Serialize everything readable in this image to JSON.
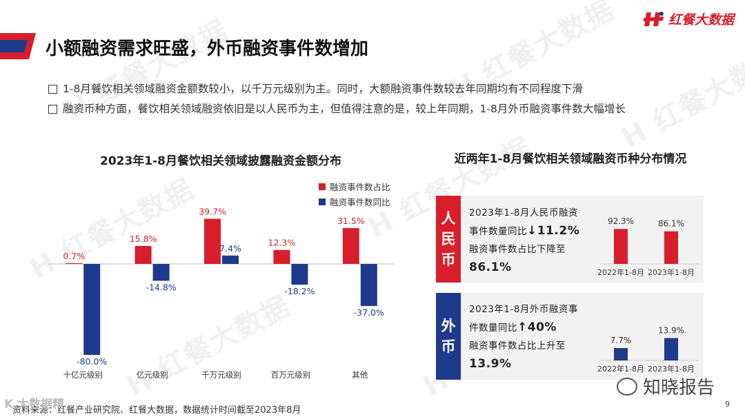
{
  "brand": {
    "logo_text": "红餐大数据",
    "accent": "#d81e2b",
    "blue": "#1e3a8c"
  },
  "title": "小额融资需求旺盛，外币融资事件数增加",
  "bullets": [
    "1-8月餐饮相关领域融资金额数较小，以千万元级别为主。同时，大额融资事件数较去年同期均有不同程度下滑",
    "融资币种方面，餐饮相关领域融资依旧是以人民币为主，但值得注意的是，较上年同期，1-8月外币融资事件数大幅增长"
  ],
  "chart_data": [
    {
      "type": "bar",
      "title": "2023年1-8月餐饮相关领域披露融资金额分布",
      "categories": [
        "十亿元级别",
        "亿元级别",
        "千万元级别",
        "百万元级别",
        "其他"
      ],
      "series": [
        {
          "name": "融资事件数占比",
          "color": "#d81e2b",
          "values": [
            0.7,
            15.8,
            39.7,
            12.3,
            31.5
          ],
          "labels": [
            "0.7%",
            "15.8%",
            "39.7%",
            "12.3%",
            "31.5%"
          ]
        },
        {
          "name": "融资事件数同比",
          "color": "#1e3a8c",
          "values": [
            -80.0,
            -14.8,
            7.4,
            -18.2,
            -37.0
          ],
          "labels": [
            "-80.0%",
            "-14.8%",
            "7.4%",
            "-18.2%",
            "-37.0%"
          ]
        }
      ],
      "ylim": [
        -82,
        42
      ]
    },
    {
      "type": "bar",
      "title": "",
      "categories": [
        "2022年1-8月",
        "2023年1-8月"
      ],
      "series": [
        {
          "name": "",
          "color": "#d81e2b",
          "values": [
            92.3,
            86.1
          ],
          "labels": [
            "92.3%",
            "86.1%"
          ]
        }
      ],
      "ylim": [
        0,
        100
      ]
    },
    {
      "type": "bar",
      "title": "",
      "categories": [
        "2022年1-8月",
        "2023年1-8月"
      ],
      "series": [
        {
          "name": "",
          "color": "#1e3a8c",
          "values": [
            7.7,
            13.9
          ],
          "labels": [
            "7.7%",
            "13.9%"
          ]
        }
      ],
      "ylim": [
        0,
        15
      ]
    }
  ],
  "right": {
    "title": "近两年1-8月餐饮相关领域融资币种分布情况",
    "rmb": {
      "tag": "人民币",
      "l1": "2023年1-8月人民币融资",
      "l2a": "事件数量同比",
      "l2b": "↓11.2%",
      "l3": "融资事件数占比下降至",
      "l4": "86.1%"
    },
    "fx": {
      "tag": "外币",
      "l1": "2023年1-8月外币融资事",
      "l2a": "件数量同比",
      "l2b": "↑40%",
      "l3": "融资事件数占比上升至",
      "l4": "13.9%"
    }
  },
  "footer": {
    "source": "资料来源：红餐产业研究院、红餐大数据，数据统计时间截至2023年8月",
    "page": "9",
    "watermark": "红餐大数据",
    "corner_wm": "知晓报告",
    "corner_logo": "K 大数据精"
  }
}
